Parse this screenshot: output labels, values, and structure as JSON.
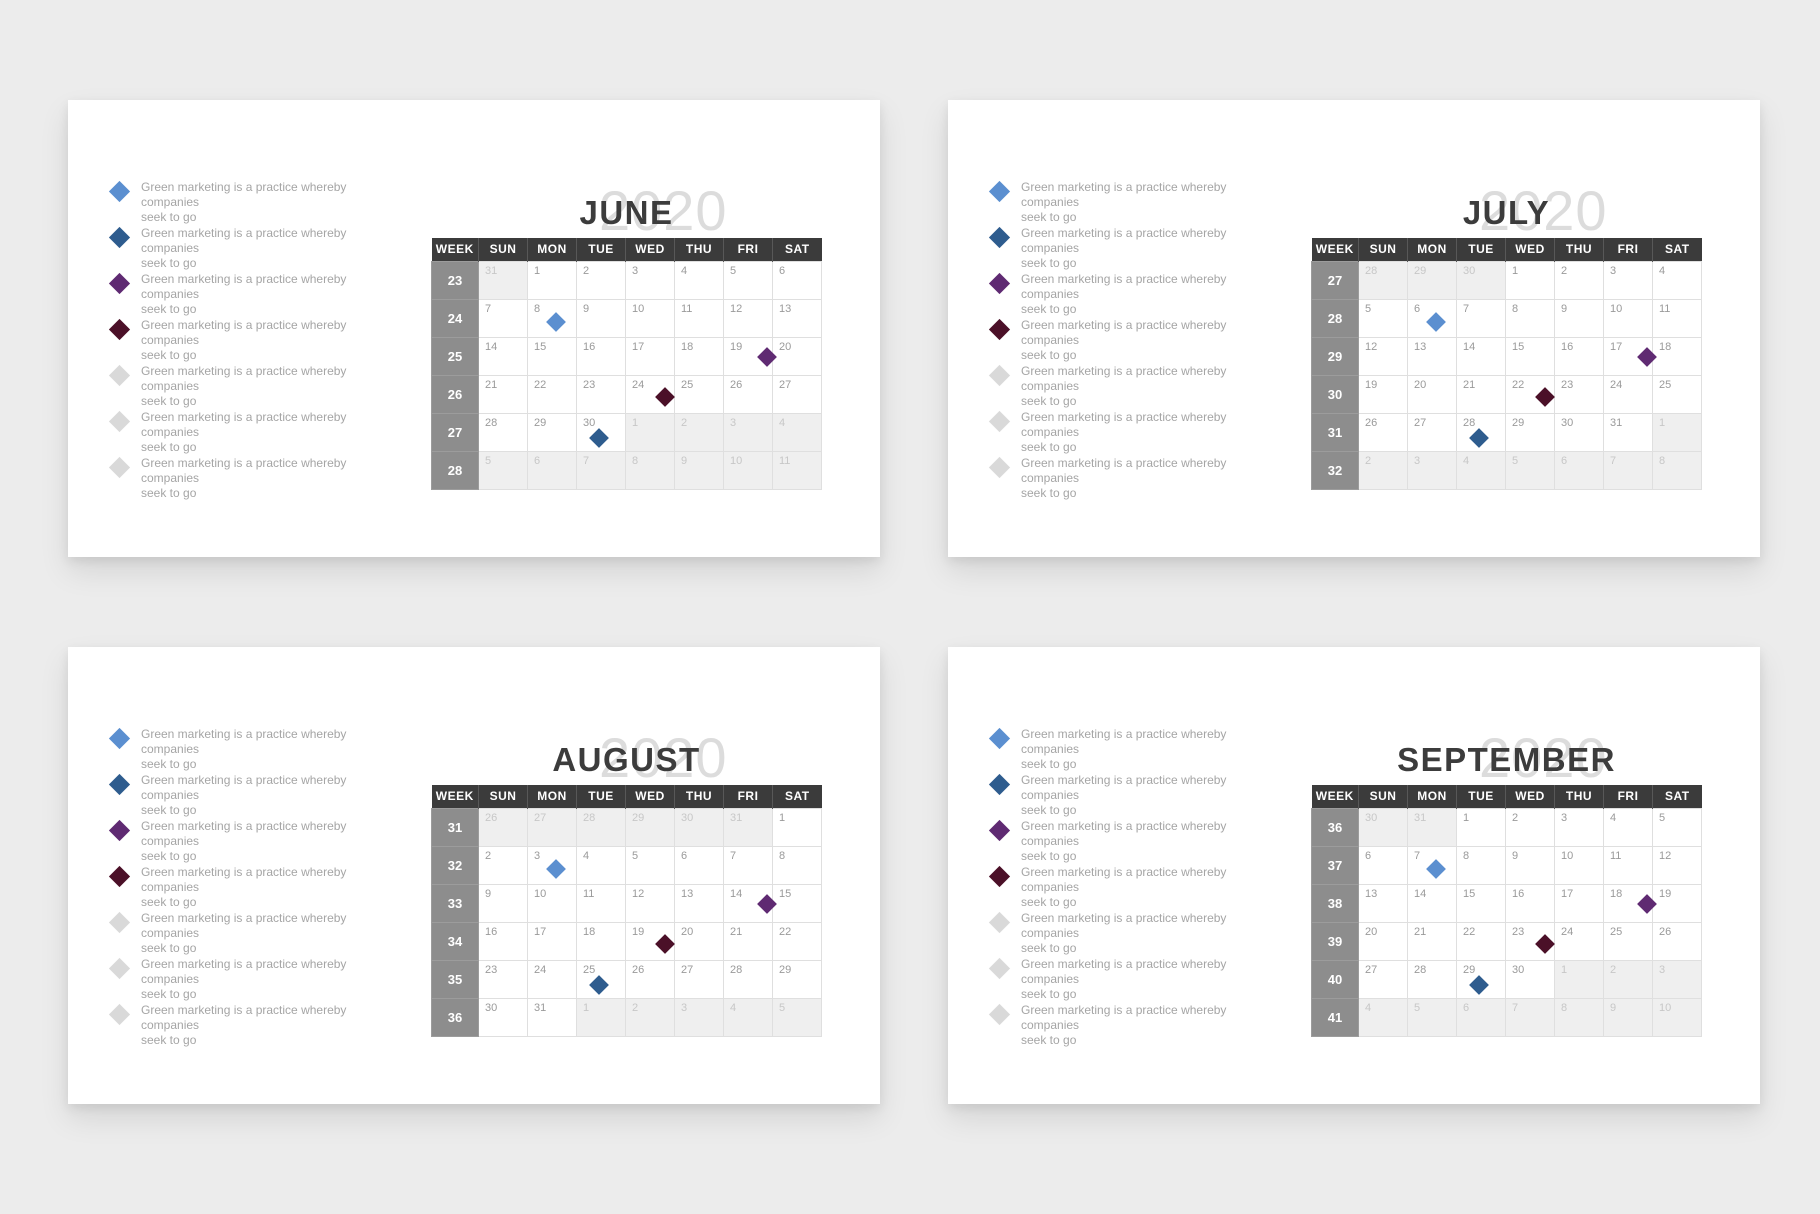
{
  "page": {
    "background": "#ececec",
    "card_background": "#ffffff"
  },
  "year": "2020",
  "colors": {
    "blue": "#5b8fd0",
    "navy": "#2e5c8e",
    "purple": "#5f2a72",
    "maroon": "#4b1028",
    "gray": "#d9d9d9",
    "header_bg": "#3b3b3b",
    "week_col_bg": "#8d8d8d",
    "muted_cell_bg": "#efefef",
    "title_color": "#3c3c3c",
    "year_color": "#dcdcdc"
  },
  "legend": {
    "line1": "Green marketing is a practice whereby companies",
    "line2": "seek to go",
    "items": [
      {
        "color": "blue"
      },
      {
        "color": "navy"
      },
      {
        "color": "purple"
      },
      {
        "color": "maroon"
      },
      {
        "color": "gray"
      },
      {
        "color": "gray"
      },
      {
        "color": "gray"
      }
    ]
  },
  "table": {
    "headers": [
      "WEEK",
      "SUN",
      "MON",
      "TUE",
      "WED",
      "THU",
      "FRI",
      "SAT"
    ]
  },
  "slides": [
    {
      "month": "JUNE",
      "weeks": [
        {
          "num": "23",
          "days": [
            "31*",
            "1",
            "2",
            "3",
            "4",
            "5",
            "6"
          ]
        },
        {
          "num": "24",
          "days": [
            "7",
            "8",
            "9",
            "10",
            "11",
            "12",
            "13"
          ]
        },
        {
          "num": "25",
          "days": [
            "14",
            "15",
            "16",
            "17",
            "18",
            "19",
            "20"
          ]
        },
        {
          "num": "26",
          "days": [
            "21",
            "22",
            "23",
            "24",
            "25",
            "26",
            "27"
          ]
        },
        {
          "num": "27",
          "days": [
            "28",
            "29",
            "30",
            "1*",
            "2*",
            "3*",
            "4*"
          ]
        },
        {
          "num": "28",
          "days": [
            "5*",
            "6*",
            "7*",
            "8*",
            "9*",
            "10*",
            "11*"
          ]
        }
      ],
      "markers": [
        {
          "row": 1,
          "day": 1,
          "color": "blue"
        },
        {
          "row": 2,
          "day": 5,
          "color": "purple"
        },
        {
          "row": 3,
          "day": 3,
          "color": "maroon"
        },
        {
          "row": 4,
          "day": 2,
          "color": "navy"
        }
      ]
    },
    {
      "month": "JULY",
      "weeks": [
        {
          "num": "27",
          "days": [
            "28*",
            "29*",
            "30*",
            "1",
            "2",
            "3",
            "4"
          ]
        },
        {
          "num": "28",
          "days": [
            "5",
            "6",
            "7",
            "8",
            "9",
            "10",
            "11"
          ]
        },
        {
          "num": "29",
          "days": [
            "12",
            "13",
            "14",
            "15",
            "16",
            "17",
            "18"
          ]
        },
        {
          "num": "30",
          "days": [
            "19",
            "20",
            "21",
            "22",
            "23",
            "24",
            "25"
          ]
        },
        {
          "num": "31",
          "days": [
            "26",
            "27",
            "28",
            "29",
            "30",
            "31",
            "1*"
          ]
        },
        {
          "num": "32",
          "days": [
            "2*",
            "3*",
            "4*",
            "5*",
            "6*",
            "7*",
            "8*"
          ]
        }
      ],
      "markers": [
        {
          "row": 1,
          "day": 1,
          "color": "blue"
        },
        {
          "row": 2,
          "day": 5,
          "color": "purple"
        },
        {
          "row": 3,
          "day": 3,
          "color": "maroon"
        },
        {
          "row": 4,
          "day": 2,
          "color": "navy"
        }
      ]
    },
    {
      "month": "AUGUST",
      "weeks": [
        {
          "num": "31",
          "days": [
            "26*",
            "27*",
            "28*",
            "29*",
            "30*",
            "31*",
            "1"
          ]
        },
        {
          "num": "32",
          "days": [
            "2",
            "3",
            "4",
            "5",
            "6",
            "7",
            "8"
          ]
        },
        {
          "num": "33",
          "days": [
            "9",
            "10",
            "11",
            "12",
            "13",
            "14",
            "15"
          ]
        },
        {
          "num": "34",
          "days": [
            "16",
            "17",
            "18",
            "19",
            "20",
            "21",
            "22"
          ]
        },
        {
          "num": "35",
          "days": [
            "23",
            "24",
            "25",
            "26",
            "27",
            "28",
            "29"
          ]
        },
        {
          "num": "36",
          "days": [
            "30",
            "31",
            "1*",
            "2*",
            "3*",
            "4*",
            "5*"
          ]
        }
      ],
      "markers": [
        {
          "row": 1,
          "day": 1,
          "color": "blue"
        },
        {
          "row": 2,
          "day": 5,
          "color": "purple"
        },
        {
          "row": 3,
          "day": 3,
          "color": "maroon"
        },
        {
          "row": 4,
          "day": 2,
          "color": "navy"
        }
      ]
    },
    {
      "month": "SEPTEMBER",
      "weeks": [
        {
          "num": "36",
          "days": [
            "30*",
            "31*",
            "1",
            "2",
            "3",
            "4",
            "5"
          ]
        },
        {
          "num": "37",
          "days": [
            "6",
            "7",
            "8",
            "9",
            "10",
            "11",
            "12"
          ]
        },
        {
          "num": "38",
          "days": [
            "13",
            "14",
            "15",
            "16",
            "17",
            "18",
            "19"
          ]
        },
        {
          "num": "39",
          "days": [
            "20",
            "21",
            "22",
            "23",
            "24",
            "25",
            "26"
          ]
        },
        {
          "num": "40",
          "days": [
            "27",
            "28",
            "29",
            "30",
            "1*",
            "2*",
            "3*"
          ]
        },
        {
          "num": "41",
          "days": [
            "4*",
            "5*",
            "6*",
            "7*",
            "8*",
            "9*",
            "10*"
          ]
        }
      ],
      "markers": [
        {
          "row": 1,
          "day": 1,
          "color": "blue"
        },
        {
          "row": 2,
          "day": 5,
          "color": "purple"
        },
        {
          "row": 3,
          "day": 3,
          "color": "maroon"
        },
        {
          "row": 4,
          "day": 2,
          "color": "navy"
        }
      ]
    }
  ]
}
